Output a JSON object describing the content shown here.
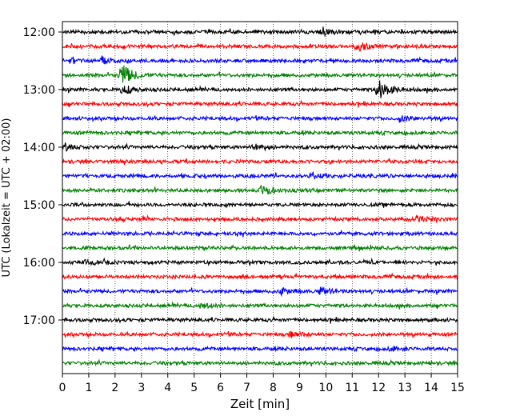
{
  "chart_data": {
    "type": "line",
    "title": "",
    "xlabel": "Zeit  [min]",
    "ylabel": "UTC (Lokalzeit = UTC + 02:00)",
    "xlim": [
      0,
      15
    ],
    "x_ticks": [
      "0",
      "1",
      "2",
      "3",
      "4",
      "5",
      "6",
      "7",
      "8",
      "9",
      "10",
      "11",
      "12",
      "13",
      "14",
      "15"
    ],
    "y_ticks": [
      "12:00",
      "13:00",
      "14:00",
      "15:00",
      "16:00",
      "17:00"
    ],
    "grid": "vertical-dotted",
    "trace_start_utc": "12:00",
    "trace_interval_min": 15,
    "trace_count": 24,
    "trace_colors": [
      "#000000",
      "#ff0000",
      "#0000ff",
      "#008000"
    ],
    "events": [
      {
        "trace": 0,
        "minute": 9.9,
        "amplitude": 1.0
      },
      {
        "trace": 1,
        "minute": 11.2,
        "amplitude": 1.2
      },
      {
        "trace": 2,
        "minute": 1.5,
        "amplitude": 1.0
      },
      {
        "trace": 2,
        "minute": 0.3,
        "amplitude": 0.6
      },
      {
        "trace": 3,
        "minute": 2.25,
        "amplitude": 3.2
      },
      {
        "trace": 4,
        "minute": 12.0,
        "amplitude": 2.8
      },
      {
        "trace": 4,
        "minute": 2.3,
        "amplitude": 1.2
      },
      {
        "trace": 6,
        "minute": 12.8,
        "amplitude": 0.8
      },
      {
        "trace": 8,
        "minute": 7.3,
        "amplitude": 1.0
      },
      {
        "trace": 8,
        "minute": 0.1,
        "amplitude": 0.8
      },
      {
        "trace": 10,
        "minute": 9.5,
        "amplitude": 0.7
      },
      {
        "trace": 11,
        "minute": 7.6,
        "amplitude": 1.5
      },
      {
        "trace": 13,
        "minute": 13.6,
        "amplitude": 0.7
      },
      {
        "trace": 16,
        "minute": 0.9,
        "amplitude": 0.6
      },
      {
        "trace": 18,
        "minute": 8.3,
        "amplitude": 0.8
      },
      {
        "trace": 18,
        "minute": 9.8,
        "amplitude": 0.8
      },
      {
        "trace": 19,
        "minute": 5.3,
        "amplitude": 0.7
      },
      {
        "trace": 21,
        "minute": 8.7,
        "amplitude": 0.7
      },
      {
        "trace": 22,
        "minute": 12.5,
        "amplitude": 0.5
      }
    ]
  }
}
